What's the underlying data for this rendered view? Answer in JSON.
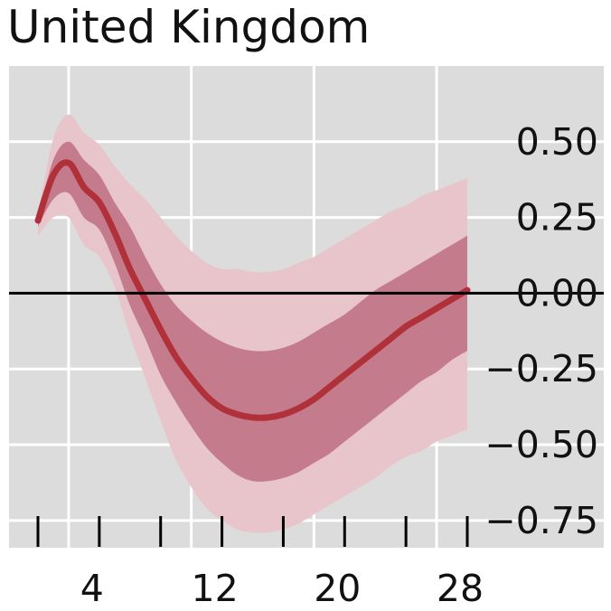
{
  "chart_data": {
    "type": "line",
    "title": "United Kingdom",
    "xlabel": "",
    "ylabel": "",
    "xlim": [
      -0.5,
      29.5
    ],
    "ylim": [
      -0.84,
      0.75
    ],
    "x_ticks": [
      4,
      12,
      20,
      28
    ],
    "x_minor_ticks": [
      0,
      4,
      8,
      12,
      16,
      20,
      24,
      28
    ],
    "y_ticks": [
      0.5,
      0.25,
      0.0,
      -0.25,
      -0.5,
      -0.75
    ],
    "y_tick_labels": [
      "0.50",
      "0.25",
      "0.00",
      "−0.25",
      "−0.50",
      "−0.75"
    ],
    "zero_line": 0,
    "grid": true,
    "colors": {
      "background": "#dcdcdc",
      "grid": "#ffffff",
      "outer_band": "#e8c4cb",
      "inner_band": "#c47c8c",
      "line": "#b0313a",
      "zero": "#000000"
    },
    "series": [
      {
        "name": "median",
        "x": [
          0,
          1,
          2,
          3,
          4,
          5,
          6,
          7,
          8,
          9,
          10,
          11,
          12,
          13,
          14,
          15,
          16,
          17,
          18,
          19,
          20,
          21,
          22,
          23,
          24,
          25,
          26,
          27,
          28
        ],
        "values": [
          0.24,
          0.39,
          0.43,
          0.35,
          0.3,
          0.2,
          0.08,
          -0.02,
          -0.12,
          -0.21,
          -0.28,
          -0.34,
          -0.38,
          -0.4,
          -0.41,
          -0.41,
          -0.4,
          -0.38,
          -0.35,
          -0.31,
          -0.27,
          -0.23,
          -0.19,
          -0.15,
          -0.11,
          -0.08,
          -0.05,
          -0.02,
          0.01
        ]
      }
    ],
    "bands": [
      {
        "name": "outer",
        "x": [
          0,
          1,
          2,
          3,
          4,
          5,
          6,
          7,
          8,
          9,
          10,
          11,
          12,
          13,
          14,
          15,
          16,
          17,
          18,
          19,
          20,
          21,
          22,
          23,
          24,
          25,
          26,
          27,
          28
        ],
        "upper": [
          0.26,
          0.51,
          0.59,
          0.53,
          0.49,
          0.42,
          0.36,
          0.31,
          0.25,
          0.19,
          0.14,
          0.1,
          0.08,
          0.08,
          0.07,
          0.07,
          0.08,
          0.1,
          0.12,
          0.15,
          0.18,
          0.21,
          0.24,
          0.27,
          0.29,
          0.32,
          0.34,
          0.36,
          0.38
        ],
        "lower": [
          0.19,
          0.25,
          0.25,
          0.16,
          0.12,
          0.02,
          -0.14,
          -0.28,
          -0.42,
          -0.55,
          -0.64,
          -0.71,
          -0.75,
          -0.78,
          -0.79,
          -0.79,
          -0.78,
          -0.76,
          -0.73,
          -0.7,
          -0.67,
          -0.64,
          -0.61,
          -0.57,
          -0.54,
          -0.52,
          -0.49,
          -0.47,
          -0.45
        ]
      },
      {
        "name": "inner",
        "x": [
          0,
          1,
          2,
          3,
          4,
          5,
          6,
          7,
          8,
          9,
          10,
          11,
          12,
          13,
          14,
          15,
          16,
          17,
          18,
          19,
          20,
          21,
          22,
          23,
          24,
          25,
          26,
          27,
          28
        ],
        "upper": [
          0.25,
          0.44,
          0.5,
          0.44,
          0.39,
          0.3,
          0.22,
          0.12,
          0.03,
          -0.04,
          -0.09,
          -0.13,
          -0.16,
          -0.18,
          -0.19,
          -0.19,
          -0.18,
          -0.16,
          -0.13,
          -0.1,
          -0.07,
          -0.03,
          0.01,
          0.04,
          0.07,
          0.1,
          0.13,
          0.16,
          0.19
        ],
        "lower": [
          0.22,
          0.31,
          0.33,
          0.25,
          0.21,
          0.1,
          -0.04,
          -0.15,
          -0.27,
          -0.36,
          -0.44,
          -0.51,
          -0.56,
          -0.6,
          -0.62,
          -0.62,
          -0.61,
          -0.59,
          -0.56,
          -0.53,
          -0.49,
          -0.45,
          -0.41,
          -0.37,
          -0.33,
          -0.29,
          -0.26,
          -0.22,
          -0.19
        ]
      }
    ]
  }
}
